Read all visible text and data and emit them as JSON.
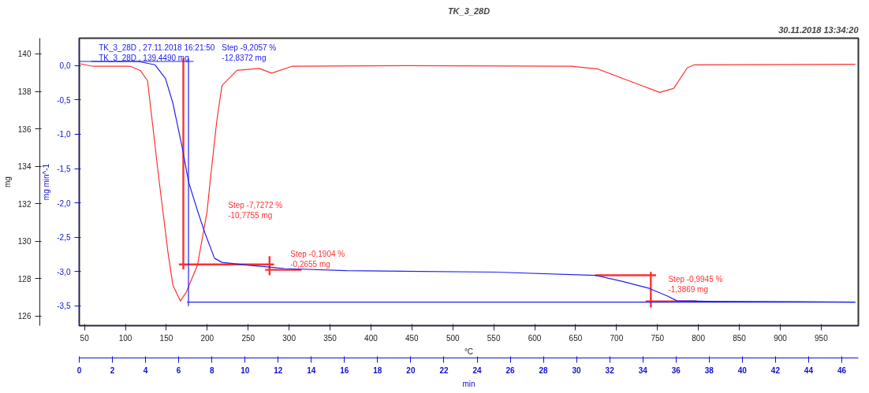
{
  "chart_data": {
    "type": "line",
    "title": "TK_3_28D",
    "xlabel": "min",
    "x2label": "°C",
    "ylabel": "mg",
    "y2label": "mg min^-1",
    "xlim": [
      0,
      47.0
    ],
    "xticks": [
      0,
      2,
      4,
      6,
      8,
      10,
      12,
      14,
      16,
      18,
      20,
      22,
      24,
      26,
      28,
      30,
      32,
      34,
      36,
      38,
      40,
      42,
      44,
      46
    ],
    "x2lim": [
      43.6,
      995.4
    ],
    "x2ticks": [
      50,
      100,
      150,
      200,
      250,
      300,
      350,
      400,
      450,
      500,
      550,
      600,
      650,
      700,
      750,
      800,
      850,
      900,
      950
    ],
    "ylim": [
      125.49,
      140.84
    ],
    "yticks": [
      126,
      128,
      130,
      132,
      134,
      136,
      138,
      140
    ],
    "y2lim": [
      -3.79,
      0.4
    ],
    "y2ticks": [
      {
        "value": -3.5,
        "label": "-3,5"
      },
      {
        "value": -3.0,
        "label": "-3,0"
      },
      {
        "value": -2.5,
        "label": "-2,5"
      },
      {
        "value": -2.0,
        "label": "-2,0"
      },
      {
        "value": -1.5,
        "label": "-1,5"
      },
      {
        "value": -1.0,
        "label": "-1,0"
      },
      {
        "value": -0.5,
        "label": "-0,5"
      },
      {
        "value": 0.0,
        "label": "0,0"
      }
    ],
    "series": [
      {
        "color": "#ff3030",
        "axis": "y2",
        "x": [
          0.0,
          0.85,
          3.09,
          3.68,
          4.12,
          4.75,
          5.34,
          5.65,
          6.1,
          6.46,
          7.13,
          7.71,
          7.93,
          8.3,
          8.61,
          9.51,
          10.85,
          11.61,
          12.82,
          20.0,
          29.69,
          31.3,
          33.81,
          35.02,
          35.87,
          36.68,
          37.09,
          46.82
        ],
        "values": [
          0.03,
          -0.01,
          -0.01,
          -0.07,
          -0.22,
          -1.54,
          -2.7,
          -3.2,
          -3.43,
          -3.3,
          -2.91,
          -2.13,
          -1.61,
          -0.8,
          -0.29,
          -0.07,
          -0.04,
          -0.11,
          -0.01,
          0.0,
          -0.01,
          -0.05,
          -0.28,
          -0.39,
          -0.33,
          -0.03,
          0.01,
          0.02
        ]
      },
      {
        "color": "#ff3030",
        "x": [
          6.28,
          6.28
        ],
        "values": [
          139.78,
          128.5
        ]
      },
      {
        "color": "#ff3030",
        "x": [
          6.01,
          11.75
        ],
        "values": [
          128.76,
          128.76
        ]
      },
      {
        "color": "#ff3030",
        "x": [
          11.48,
          11.48
        ],
        "values": [
          129.2,
          128.18
        ]
      },
      {
        "color": "#ff3030",
        "x": [
          11.21,
          13.41
        ],
        "values": [
          128.47,
          128.47
        ]
      },
      {
        "color": "#ff3030",
        "x": [
          31.12,
          34.8
        ],
        "values": [
          128.18,
          128.18
        ]
      },
      {
        "color": "#ff3030",
        "x": [
          34.48,
          34.48
        ],
        "values": [
          128.36,
          126.46
        ]
      },
      {
        "color": "#ff3030",
        "x": [
          34.17,
          37.26
        ],
        "values": [
          126.79,
          126.79
        ]
      },
      {
        "color": "#2020f0",
        "x": [
          0.0,
          6.9
        ],
        "values": [
          139.6,
          139.6
        ]
      },
      {
        "color": "#2020f0",
        "x": [
          6.59,
          6.59
        ],
        "values": [
          139.78,
          126.53
        ]
      },
      {
        "color": "#2020f0",
        "x": [
          6.5,
          46.82
        ],
        "values": [
          126.75,
          126.75
        ]
      },
      {
        "color": "#2020f0",
        "x": [
          0.72,
          3.54,
          4.57,
          5.2,
          5.65,
          6.23,
          6.59,
          7.13,
          7.58,
          8.16,
          8.61,
          10.13,
          11.61,
          12.38,
          16.1,
          25.07,
          31.12,
          32.78,
          34.39,
          35.47,
          36.05,
          37.94,
          46.82
        ],
        "values": [
          139.6,
          139.6,
          139.42,
          138.69,
          137.37,
          134.93,
          133.18,
          131.64,
          130.44,
          129.09,
          128.87,
          128.72,
          128.61,
          128.54,
          128.43,
          128.35,
          128.18,
          127.85,
          127.48,
          127.08,
          126.82,
          126.79,
          126.75
        ]
      }
    ],
    "annotations": [
      "30.11.2018 13:34:20",
      "TK_3_28D , 27.11.2018 16:21:50\nTK_3_28D , 139,4490 mg",
      "Step   -9,2057 %\n           -12,8372 mg",
      "Step   -7,7272 %\n           -10,7755 mg",
      "Step   -0,1904 %\n           -0,2655 mg",
      "Step   -0,9945 %\n           -1,3869 mg"
    ]
  }
}
